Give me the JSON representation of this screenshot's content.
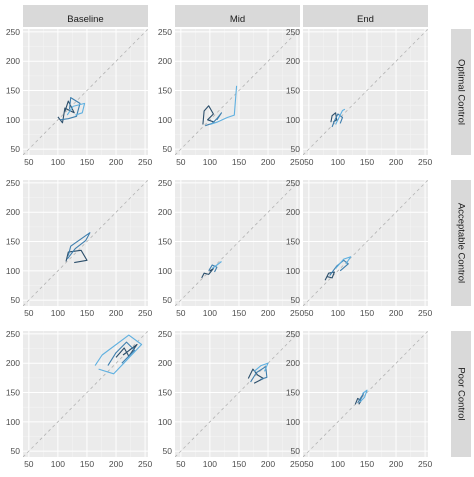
{
  "chart_data": {
    "type": "line",
    "layout": "3x3 facet grid",
    "title": "",
    "xlabel": "",
    "ylabel": "",
    "xlim": [
      40,
      255
    ],
    "ylim": [
      40,
      255
    ],
    "xticks": [
      50,
      100,
      150,
      200,
      250
    ],
    "yticks": [
      50,
      100,
      150,
      200,
      250
    ],
    "grid": true,
    "reference_line": "identity (y = x), dashed light grey",
    "columns": [
      "Baseline",
      "Mid",
      "End"
    ],
    "rows": [
      "Optimal Control",
      "Acceptable Control",
      "Poor Control"
    ],
    "colors": {
      "panel_bg": "#ebebeb",
      "strip_bg": "#d9d9d9",
      "grid_major": "#ffffff",
      "identity_line": "#b3b3b3",
      "series_dark": "#2c4f6b",
      "series_mid": "#3f7fae",
      "series_light": "#5fb0e0"
    },
    "panels": [
      {
        "row": "Optimal Control",
        "col": "Baseline",
        "series": [
          {
            "color": "series_dark",
            "points": [
              [
                100,
                105
              ],
              [
                108,
                95
              ],
              [
                112,
                120
              ],
              [
                128,
                112
              ],
              [
                118,
                132
              ],
              [
                112,
                114
              ]
            ]
          },
          {
            "color": "series_mid",
            "points": [
              [
                104,
                100
              ],
              [
                118,
                102
              ],
              [
                132,
                106
              ],
              [
                138,
                128
              ],
              [
                122,
                138
              ],
              [
                120,
                118
              ]
            ]
          },
          {
            "color": "series_light",
            "points": [
              [
                116,
                108
              ],
              [
                126,
                123
              ],
              [
                146,
                128
              ],
              [
                142,
                112
              ],
              [
                130,
                108
              ]
            ]
          }
        ]
      },
      {
        "row": "Optimal Control",
        "col": "Mid",
        "series": [
          {
            "color": "series_dark",
            "points": [
              [
                88,
                92
              ],
              [
                90,
                115
              ],
              [
                98,
                124
              ],
              [
                106,
                110
              ],
              [
                96,
                100
              ],
              [
                108,
                96
              ]
            ]
          },
          {
            "color": "series_mid",
            "points": [
              [
                92,
                90
              ],
              [
                104,
                94
              ],
              [
                112,
                102
              ],
              [
                120,
                112
              ],
              [
                112,
                100
              ]
            ]
          },
          {
            "color": "series_light",
            "points": [
              [
                100,
                92
              ],
              [
                112,
                96
              ],
              [
                130,
                104
              ],
              [
                142,
                108
              ],
              [
                146,
                158
              ]
            ]
          }
        ]
      },
      {
        "row": "Optimal Control",
        "col": "End",
        "series": [
          {
            "color": "series_dark",
            "points": [
              [
                88,
                96
              ],
              [
                90,
                107
              ],
              [
                96,
                112
              ],
              [
                98,
                100
              ],
              [
                92,
                96
              ]
            ]
          },
          {
            "color": "series_mid",
            "points": [
              [
                90,
                88
              ],
              [
                94,
                98
              ],
              [
                100,
                110
              ],
              [
                108,
                104
              ],
              [
                104,
                94
              ]
            ]
          },
          {
            "color": "series_light",
            "points": [
              [
                96,
                92
              ],
              [
                102,
                104
              ],
              [
                108,
                116
              ],
              [
                112,
                118
              ]
            ]
          }
        ]
      },
      {
        "row": "Acceptable Control",
        "col": "Baseline",
        "series": [
          {
            "color": "series_dark",
            "points": [
              [
                114,
                116
              ],
              [
                118,
                132
              ],
              [
                140,
                135
              ],
              [
                150,
                118
              ],
              [
                128,
                114
              ]
            ]
          },
          {
            "color": "series_mid",
            "points": [
              [
                116,
                120
              ],
              [
                130,
                138
              ],
              [
                148,
                152
              ],
              [
                155,
                165
              ],
              [
                122,
                142
              ],
              [
                118,
                126
              ]
            ]
          }
        ]
      },
      {
        "row": "Acceptable Control",
        "col": "Mid",
        "series": [
          {
            "color": "series_dark",
            "points": [
              [
                86,
                88
              ],
              [
                90,
                96
              ],
              [
                98,
                94
              ],
              [
                106,
                104
              ],
              [
                100,
                100
              ]
            ]
          },
          {
            "color": "series_mid",
            "points": [
              [
                98,
                100
              ],
              [
                104,
                110
              ],
              [
                112,
                106
              ],
              [
                108,
                98
              ]
            ]
          },
          {
            "color": "series_light",
            "points": [
              [
                104,
                104
              ],
              [
                112,
                110
              ],
              [
                120,
                116
              ]
            ]
          }
        ]
      },
      {
        "row": "Acceptable Control",
        "col": "End",
        "series": [
          {
            "color": "series_dark",
            "points": [
              [
                78,
                84
              ],
              [
                84,
                96
              ],
              [
                94,
                98
              ],
              [
                90,
                88
              ],
              [
                82,
                90
              ]
            ]
          },
          {
            "color": "series_mid",
            "points": [
              [
                86,
                92
              ],
              [
                98,
                108
              ],
              [
                110,
                118
              ],
              [
                118,
                112
              ],
              [
                104,
                100
              ]
            ]
          },
          {
            "color": "series_light",
            "points": [
              [
                96,
                104
              ],
              [
                110,
                120
              ],
              [
                122,
                124
              ],
              [
                114,
                112
              ]
            ]
          }
        ]
      },
      {
        "row": "Poor Control",
        "col": "Baseline",
        "series": [
          {
            "color": "series_dark",
            "points": [
              [
                200,
                210
              ],
              [
                214,
                226
              ],
              [
                222,
                212
              ],
              [
                236,
                232
              ],
              [
                212,
                214
              ]
            ]
          },
          {
            "color": "series_mid",
            "points": [
              [
                186,
                196
              ],
              [
                200,
                218
              ],
              [
                218,
                236
              ],
              [
                232,
                222
              ],
              [
                210,
                200
              ]
            ]
          },
          {
            "color": "series_light",
            "points": [
              [
                164,
                196
              ],
              [
                176,
                214
              ],
              [
                222,
                248
              ],
              [
                244,
                232
              ],
              [
                196,
                182
              ],
              [
                170,
                190
              ]
            ]
          }
        ]
      },
      {
        "row": "Poor Control",
        "col": "Mid",
        "series": [
          {
            "color": "series_dark",
            "points": [
              [
                166,
                174
              ],
              [
                174,
                190
              ],
              [
                182,
                180
              ],
              [
                192,
                174
              ],
              [
                176,
                166
              ]
            ]
          },
          {
            "color": "series_mid",
            "points": [
              [
                170,
                168
              ],
              [
                180,
                184
              ],
              [
                196,
                194
              ],
              [
                198,
                176
              ],
              [
                186,
                172
              ]
            ]
          },
          {
            "color": "series_light",
            "points": [
              [
                176,
                186
              ],
              [
                188,
                196
              ],
              [
                200,
                200
              ],
              [
                194,
                186
              ]
            ]
          }
        ]
      },
      {
        "row": "Poor Control",
        "col": "End",
        "series": [
          {
            "color": "series_dark",
            "points": [
              [
                130,
                130
              ],
              [
                134,
                140
              ],
              [
                140,
                136
              ],
              [
                136,
                130
              ]
            ]
          },
          {
            "color": "series_mid",
            "points": [
              [
                134,
                132
              ],
              [
                140,
                142
              ],
              [
                144,
                148
              ],
              [
                138,
                136
              ]
            ]
          },
          {
            "color": "series_light",
            "points": [
              [
                138,
                134
              ],
              [
                146,
                142
              ],
              [
                150,
                154
              ],
              [
                142,
                148
              ]
            ]
          }
        ]
      }
    ]
  }
}
